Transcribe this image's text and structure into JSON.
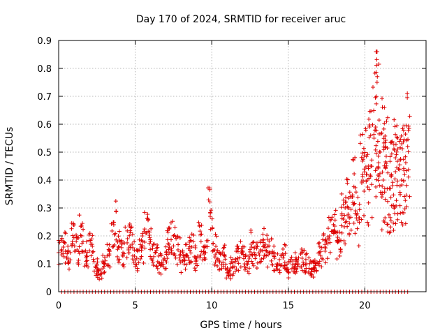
{
  "chart_data": {
    "type": "scatter",
    "title": "Day 170 of 2024, SRMTID for receiver aruc",
    "xlabel": "GPS time / hours",
    "ylabel": "SRMTID / TECUs",
    "xlim": [
      0,
      24
    ],
    "ylim": [
      0,
      0.9
    ],
    "xticks": [
      "0",
      "5",
      "10",
      "15",
      "20"
    ],
    "yticks": [
      "0",
      "0.1",
      "0.2",
      "0.3",
      "0.4",
      "0.5",
      "0.6",
      "0.7",
      "0.8",
      "0.9"
    ],
    "grid": true,
    "marker": "+",
    "color": "#dd0000",
    "series": [
      {
        "name": "SRMTID",
        "x": [
          0.0,
          0.3,
          0.6,
          0.9,
          1.2,
          1.5,
          1.8,
          2.1,
          2.4,
          2.7,
          3.0,
          3.3,
          3.6,
          3.9,
          4.2,
          4.5,
          4.8,
          5.1,
          5.4,
          5.7,
          6.0,
          6.3,
          6.6,
          6.9,
          7.2,
          7.5,
          7.8,
          8.1,
          8.4,
          8.7,
          9.0,
          9.3,
          9.6,
          9.9,
          10.2,
          10.5,
          10.8,
          11.1,
          11.4,
          11.7,
          12.0,
          12.3,
          12.6,
          12.9,
          13.2,
          13.5,
          13.8,
          14.1,
          14.4,
          14.7,
          15.0,
          15.3,
          15.6,
          15.9,
          16.2,
          16.5,
          16.8,
          17.1,
          17.4,
          17.7,
          18.0,
          18.3,
          18.6,
          18.9,
          19.2,
          19.5,
          19.8,
          20.1,
          20.4,
          20.6,
          20.8,
          21.0,
          21.2,
          21.4,
          21.6,
          21.8,
          22.0,
          22.2,
          22.4,
          22.6,
          22.8
        ],
        "y": [
          0.14,
          0.16,
          0.12,
          0.18,
          0.15,
          0.2,
          0.13,
          0.17,
          0.09,
          0.06,
          0.1,
          0.13,
          0.24,
          0.16,
          0.14,
          0.19,
          0.17,
          0.12,
          0.16,
          0.21,
          0.18,
          0.14,
          0.1,
          0.12,
          0.17,
          0.2,
          0.15,
          0.11,
          0.13,
          0.16,
          0.12,
          0.18,
          0.14,
          0.27,
          0.15,
          0.11,
          0.13,
          0.07,
          0.09,
          0.12,
          0.14,
          0.1,
          0.16,
          0.13,
          0.15,
          0.17,
          0.14,
          0.12,
          0.1,
          0.13,
          0.08,
          0.11,
          0.09,
          0.12,
          0.1,
          0.08,
          0.1,
          0.13,
          0.16,
          0.2,
          0.22,
          0.18,
          0.26,
          0.3,
          0.34,
          0.28,
          0.39,
          0.42,
          0.45,
          0.55,
          0.75,
          0.5,
          0.4,
          0.46,
          0.37,
          0.38,
          0.43,
          0.44,
          0.4,
          0.42,
          0.52
        ],
        "zero_row_x": [
          0.2,
          0.4,
          0.6,
          0.8,
          1.0,
          1.2,
          1.4,
          1.6,
          1.8,
          2.0,
          2.2,
          2.4,
          2.6,
          2.8,
          3.0,
          3.2,
          3.4,
          3.6,
          3.8,
          4.0,
          4.2,
          4.4,
          4.6,
          4.8,
          5.0,
          5.2,
          5.4,
          5.6,
          5.8,
          6.0,
          6.2,
          6.4,
          6.6,
          6.8,
          7.0,
          7.2,
          7.4,
          7.6,
          7.8,
          8.0,
          8.2,
          8.4,
          8.6,
          8.8,
          9.0,
          9.2,
          9.4,
          9.6,
          9.8,
          10.0,
          10.2,
          10.4,
          10.6,
          10.8,
          11.0,
          11.2,
          11.4,
          11.6,
          11.8,
          12.0,
          12.2,
          12.4,
          12.6,
          12.8,
          13.0,
          13.2,
          13.4,
          13.6,
          13.8,
          14.0,
          14.2,
          14.4,
          14.6,
          14.8,
          15.0,
          15.2,
          15.4,
          15.6,
          15.8,
          16.0,
          16.2,
          16.4,
          16.6,
          16.8,
          17.0,
          17.2,
          17.4,
          17.6,
          17.8,
          18.0,
          18.2,
          18.4,
          18.6,
          18.8,
          19.0,
          19.2,
          19.4,
          19.6,
          19.8,
          20.0,
          20.2,
          20.4,
          20.6,
          20.8,
          21.0,
          21.2,
          21.4,
          21.6,
          21.8,
          22.0,
          22.2,
          22.4,
          22.6,
          22.8
        ]
      }
    ]
  }
}
